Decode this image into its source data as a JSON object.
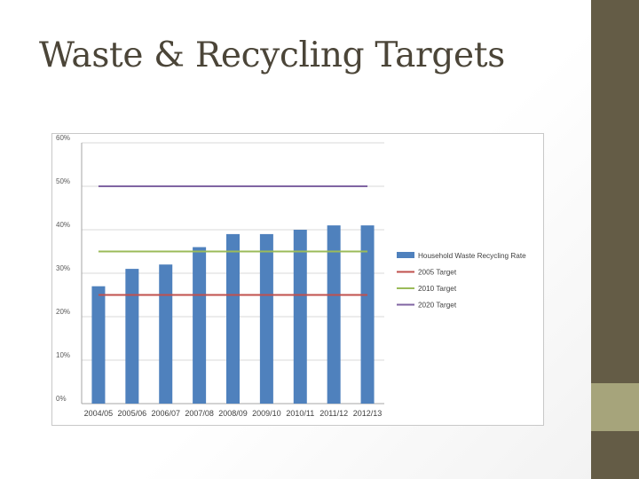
{
  "slide": {
    "title": "Waste & Recycling Targets"
  },
  "colors": {
    "sidebar": "#645c46",
    "sidebar_accent": "#a6a47b",
    "title_text": "#4b4538",
    "bar": "#4f81bd",
    "target_2005": "#c0504d",
    "target_2010": "#9bbb59",
    "target_2020": "#8064a2"
  },
  "chart_data": {
    "type": "bar",
    "title": "",
    "xlabel": "",
    "ylabel": "",
    "categories": [
      "2004/05",
      "2005/06",
      "2006/07",
      "2007/08",
      "2008/09",
      "2009/10",
      "2010/11",
      "2011/12",
      "2012/13"
    ],
    "y_ticks": [
      "0%",
      "10%",
      "20%",
      "30%",
      "40%",
      "50%",
      "60%"
    ],
    "ylim": [
      0,
      60
    ],
    "grid": true,
    "legend_position": "right",
    "series": [
      {
        "name": "Household Waste Recycling Rate",
        "kind": "bar",
        "color": "#4f81bd",
        "values": [
          27,
          31,
          32,
          36,
          39,
          39,
          40,
          41,
          41
        ]
      },
      {
        "name": "2005 Target",
        "kind": "line",
        "color": "#c0504d",
        "values": [
          25,
          25,
          25,
          25,
          25,
          25,
          25,
          25,
          25
        ]
      },
      {
        "name": "2010 Target",
        "kind": "line",
        "color": "#9bbb59",
        "values": [
          35,
          35,
          35,
          35,
          35,
          35,
          35,
          35,
          35
        ]
      },
      {
        "name": "2020 Target",
        "kind": "line",
        "color": "#8064a2",
        "values": [
          50,
          50,
          50,
          50,
          50,
          50,
          50,
          50,
          50
        ]
      }
    ]
  }
}
